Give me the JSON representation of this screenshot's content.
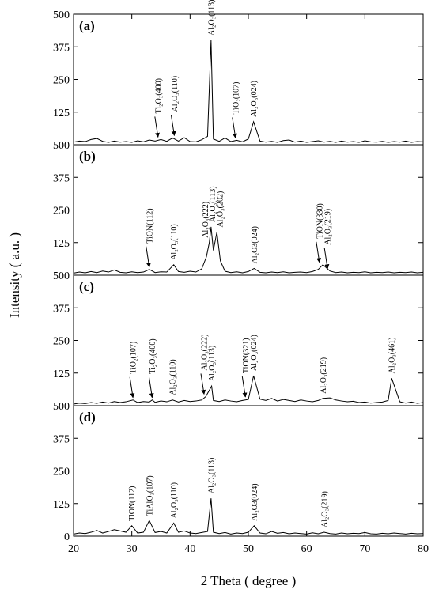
{
  "shared": {
    "xlabel": "2 Theta ( degree )",
    "ylabel": "Intensity ( a.u. )",
    "xlim": [
      20,
      80
    ],
    "xticks": [
      20,
      30,
      40,
      50,
      60,
      70,
      80
    ]
  },
  "chart_data": [
    {
      "type": "line",
      "label": "(a)",
      "color": "#000000",
      "ylim": [
        0,
        500
      ],
      "yticks": [
        125,
        250,
        375,
        500
      ],
      "x": [
        20,
        21,
        22,
        23,
        24,
        25,
        26,
        27,
        28,
        29,
        30,
        31,
        32,
        33,
        34,
        35,
        36,
        37,
        38,
        39,
        40,
        41,
        42,
        43,
        43.6,
        44,
        45,
        46,
        47,
        48,
        49,
        50,
        50.9,
        52,
        53,
        54,
        55,
        56,
        57,
        58,
        59,
        60,
        61,
        62,
        63,
        64,
        65,
        66,
        67,
        68,
        69,
        70,
        71,
        72,
        73,
        74,
        75,
        76,
        77,
        78,
        79,
        80
      ],
      "values": [
        10,
        14,
        12,
        20,
        24,
        13,
        9,
        14,
        10,
        12,
        9,
        15,
        11,
        18,
        14,
        20,
        13,
        26,
        14,
        27,
        12,
        11,
        19,
        32,
        400,
        22,
        13,
        26,
        12,
        17,
        11,
        22,
        88,
        14,
        10,
        13,
        9,
        16,
        18,
        10,
        14,
        9,
        12,
        15,
        10,
        13,
        9,
        14,
        10,
        12,
        9,
        15,
        11,
        10,
        13,
        9,
        12,
        10,
        14,
        9,
        12,
        11
      ],
      "annotations": [
        {
          "text": "Ti₂O₃(400)",
          "x": 34.5,
          "arrow": true
        },
        {
          "text": "Al₂O₃(110)",
          "x": 37.3,
          "arrow": true
        },
        {
          "text": "Al₂O₃(113)",
          "x": 43.6,
          "arrow": false
        },
        {
          "text": "TiO₂(107)",
          "x": 47.8,
          "arrow": true
        },
        {
          "text": "Al₂O₃(024)",
          "x": 50.9,
          "arrow": false
        }
      ]
    },
    {
      "type": "line",
      "label": "(b)",
      "color": "#000000",
      "ylim": [
        0,
        500
      ],
      "yticks": [
        125,
        250,
        375,
        500
      ],
      "x": [
        20,
        21,
        22,
        23,
        24,
        25,
        26,
        27,
        28,
        29,
        30,
        31,
        32,
        33,
        34,
        35,
        36,
        37.2,
        38,
        39,
        40,
        41,
        42,
        42.8,
        43.3,
        43.6,
        44,
        44.6,
        45.2,
        46,
        47,
        48,
        49,
        50,
        51,
        52,
        53,
        54,
        55,
        56,
        57,
        58,
        59,
        60,
        61,
        62,
        62.8,
        64,
        65,
        66,
        67,
        68,
        69,
        70,
        71,
        72,
        73,
        74,
        75,
        76,
        77,
        78,
        79,
        80
      ],
      "values": [
        8,
        12,
        9,
        14,
        10,
        16,
        12,
        20,
        11,
        9,
        13,
        10,
        12,
        22,
        10,
        13,
        12,
        40,
        14,
        11,
        15,
        12,
        24,
        70,
        125,
        185,
        95,
        165,
        55,
        15,
        10,
        13,
        9,
        14,
        26,
        11,
        9,
        12,
        10,
        13,
        9,
        11,
        12,
        10,
        14,
        22,
        40,
        16,
        10,
        12,
        9,
        11,
        10,
        13,
        9,
        11,
        10,
        12,
        9,
        11,
        10,
        12,
        9,
        11
      ],
      "annotations": [
        {
          "text": "TiON(112)",
          "x": 33,
          "arrow": true
        },
        {
          "text": "Al₂O₃(110)",
          "x": 37.2,
          "arrow": false
        },
        {
          "text": "Al₂O₃(222)",
          "x": 42.6,
          "arrow": false
        },
        {
          "text": "Al₂O₃(113)",
          "x": 43.8,
          "arrow": false
        },
        {
          "text": "Al₂O₃(202)",
          "x": 45.1,
          "arrow": false
        },
        {
          "text": "Al₂O3(024)",
          "x": 51,
          "arrow": false
        },
        {
          "text": "TiON(330)",
          "x": 62.2,
          "arrow": true
        },
        {
          "text": "Al₂O₃(219)",
          "x": 63.6,
          "arrow": true
        }
      ]
    },
    {
      "type": "line",
      "label": "(c)",
      "color": "#000000",
      "ylim": [
        0,
        500
      ],
      "yticks": [
        125,
        250,
        375,
        500
      ],
      "x": [
        20,
        21,
        22,
        23,
        24,
        25,
        26,
        27,
        28,
        29,
        30.2,
        31,
        32,
        33,
        33.5,
        34,
        35,
        36,
        37,
        38,
        39,
        40,
        41,
        42,
        42.7,
        43.7,
        44,
        45,
        46,
        47,
        48,
        49,
        50,
        50.9,
        52,
        53,
        54,
        55,
        56,
        57,
        58,
        59,
        60,
        61,
        62,
        62.8,
        64,
        65,
        66,
        67,
        68,
        69,
        70,
        71,
        72,
        73,
        74,
        74.6,
        76,
        77,
        78,
        79,
        80
      ],
      "values": [
        6,
        10,
        8,
        12,
        9,
        14,
        10,
        16,
        12,
        15,
        22,
        12,
        16,
        14,
        22,
        13,
        18,
        15,
        22,
        14,
        20,
        16,
        18,
        22,
        35,
        75,
        20,
        16,
        22,
        18,
        15,
        20,
        24,
        115,
        25,
        20,
        28,
        18,
        24,
        20,
        16,
        22,
        18,
        15,
        20,
        28,
        30,
        22,
        18,
        15,
        17,
        12,
        14,
        10,
        12,
        14,
        20,
        105,
        15,
        10,
        14,
        9,
        12
      ],
      "annotations": [
        {
          "text": "TiO₂(107)",
          "x": 30.2,
          "arrow": true
        },
        {
          "text": "Ti₂O₃(400)",
          "x": 33.5,
          "arrow": true
        },
        {
          "text": "Al₂O₃(110)",
          "x": 37,
          "arrow": false
        },
        {
          "text": "Al₂O₃(222)",
          "x": 42.4,
          "arrow": true
        },
        {
          "text": "Al₂O₃(113)",
          "x": 43.7,
          "arrow": false
        },
        {
          "text": "TiON(321)",
          "x": 49.5,
          "arrow": true
        },
        {
          "text": "Al₂O₃(024)",
          "x": 50.9,
          "arrow": false
        },
        {
          "text": "Al₂O₃(219)",
          "x": 62.8,
          "arrow": false
        },
        {
          "text": "Al₂O₃(461)",
          "x": 74.6,
          "arrow": false
        }
      ]
    },
    {
      "type": "line",
      "label": "(d)",
      "color": "#000000",
      "ylim": [
        0,
        500
      ],
      "yticks": [
        0,
        125,
        250,
        375,
        500
      ],
      "x": [
        20,
        21,
        22,
        23,
        24,
        25,
        26,
        27,
        28,
        29,
        30,
        31,
        32,
        33,
        34,
        35,
        36,
        37.2,
        38,
        39,
        40,
        41,
        42,
        43,
        43.6,
        44,
        45,
        46,
        47,
        48,
        49,
        50,
        51,
        52,
        53,
        54,
        55,
        56,
        57,
        58,
        59,
        60,
        61,
        62,
        63,
        64,
        65,
        66,
        67,
        68,
        69,
        70,
        71,
        72,
        73,
        74,
        75,
        76,
        77,
        78,
        79,
        80
      ],
      "values": [
        8,
        12,
        10,
        15,
        22,
        12,
        18,
        25,
        20,
        15,
        40,
        12,
        15,
        60,
        14,
        18,
        12,
        50,
        15,
        20,
        12,
        10,
        14,
        18,
        145,
        15,
        10,
        14,
        8,
        12,
        10,
        15,
        40,
        12,
        9,
        18,
        11,
        14,
        9,
        12,
        10,
        8,
        13,
        9,
        15,
        10,
        8,
        12,
        9,
        11,
        10,
        14,
        9,
        8,
        11,
        9,
        12,
        10,
        8,
        11,
        9,
        10
      ],
      "annotations": [
        {
          "text": "TiON(112)",
          "x": 30,
          "arrow": false
        },
        {
          "text": "TiAlO₃(107)",
          "x": 33,
          "arrow": false
        },
        {
          "text": "Al₂O₃(110)",
          "x": 37.2,
          "arrow": false
        },
        {
          "text": "Al₂O₃(113)",
          "x": 43.6,
          "arrow": false
        },
        {
          "text": "Al₂O3(024)",
          "x": 51,
          "arrow": false
        },
        {
          "text": "Al₂O₃(219)",
          "x": 63,
          "arrow": false
        }
      ]
    }
  ]
}
